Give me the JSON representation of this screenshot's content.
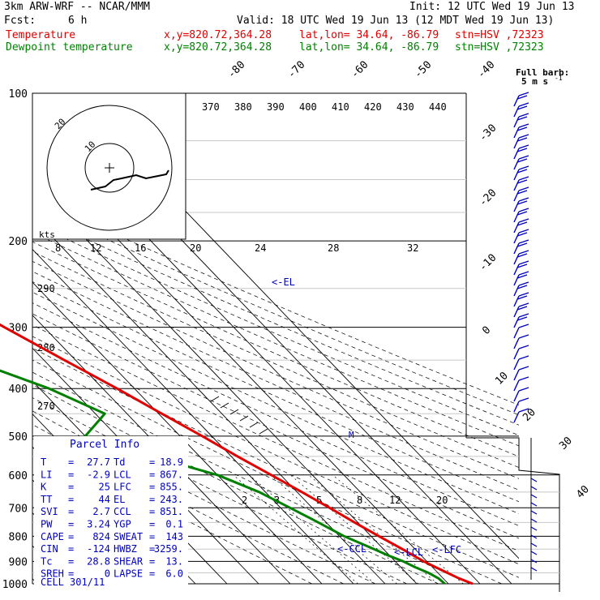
{
  "header": {
    "model": "3km ARW-WRF -- NCAR/MMM",
    "init": "Init: 12 UTC Wed 19 Jun 13",
    "fcst_label": "Fcst:",
    "fcst_value": "6 h",
    "valid": "Valid: 18 UTC Wed 19 Jun 13 (12 MDT Wed 19 Jun 13)",
    "temp_label": "Temperature",
    "dew_label": "Dewpoint temperature",
    "xy": "x,y=820.72,364.28",
    "latlon": "lat,lon= 34.64, -86.79",
    "stn": "stn=HSV ,72323"
  },
  "barb_legend": {
    "title": "Full barb:",
    "value": "5 m s",
    "exp": "-1"
  },
  "parcel_info": {
    "title": "Parcel Info",
    "rows": [
      {
        "k1": "T",
        "v1": "27.7",
        "k2": "Td",
        "v2": "18.9"
      },
      {
        "k1": "LI",
        "v1": "-2.9",
        "k2": "LCL",
        "v2": "867."
      },
      {
        "k1": "K",
        "v1": "25",
        "k2": "LFC",
        "v2": "855."
      },
      {
        "k1": "TT",
        "v1": "44",
        "k2": "EL",
        "v2": "243."
      },
      {
        "k1": "SVI",
        "v1": "2.7",
        "k2": "CCL",
        "v2": "851."
      },
      {
        "k1": "PW",
        "v1": "3.24",
        "k2": "YGP",
        "v2": "0.1"
      },
      {
        "k1": "CAPE",
        "v1": "824",
        "k2": "SWEAT",
        "v2": "143"
      },
      {
        "k1": "CIN",
        "v1": "-124",
        "k2": "HWBZ",
        "v2": "3259."
      },
      {
        "k1": "Tc",
        "v1": "28.8",
        "k2": "SHEAR",
        "v2": "13."
      },
      {
        "k1": "SREH",
        "v1": "0",
        "k2": "LAPSE",
        "v2": "6.0"
      }
    ],
    "cell_label": "CELL",
    "cell_value": "301/11"
  },
  "hodograph": {
    "units": "kts",
    "ring_outer": "20",
    "ring_inner": "10"
  },
  "markers": {
    "el": "<-EL",
    "lcl": "<-LCL",
    "lfc": "<-LFC",
    "ccl": "<-CCL",
    "m": "M"
  },
  "colors": {
    "temperature": "#e00000",
    "dewpoint": "#008000",
    "parcel_text": "#0000c0",
    "barb": "#0000c0"
  },
  "chart_data": {
    "type": "line",
    "pressure_ticks": [
      "100",
      "200",
      "300",
      "400",
      "500",
      "600",
      "700",
      "800",
      "900",
      "1000"
    ],
    "isotherm_labels": [
      "-80",
      "-70",
      "-60",
      "-50",
      "-40",
      "-30",
      "-20",
      "-10",
      "0",
      "10",
      "20",
      "30",
      "40"
    ],
    "theta_e_labels": [
      "370",
      "380",
      "390",
      "400",
      "410",
      "420",
      "430",
      "440"
    ],
    "theta_e_left_labels": [
      "290",
      "280",
      "270"
    ],
    "mixing_ratio_labels": [
      "2",
      "3",
      "5",
      "8",
      "12",
      "20"
    ],
    "speed_labels": [
      "8",
      "12",
      "16",
      "20",
      "24",
      "28",
      "32"
    ],
    "series": [
      {
        "name": "Temperature",
        "pressure": [
          1000,
          975,
          950,
          925,
          900,
          875,
          850,
          800,
          750,
          700,
          650,
          600,
          550,
          500,
          450,
          400,
          350,
          300,
          250,
          200,
          175,
          150,
          125,
          115,
          100
        ],
        "temp": [
          27.7,
          25.0,
          23.0,
          21.0,
          19.0,
          17.5,
          16.0,
          12.5,
          9.0,
          5.5,
          1.5,
          -3.0,
          -8.0,
          -13.0,
          -19.0,
          -25.5,
          -33.5,
          -42.5,
          -52.0,
          -58.5,
          -62.0,
          -66.0,
          -70.5,
          -73.0,
          -77.0
        ]
      },
      {
        "name": "Dewpoint temperature",
        "pressure": [
          1000,
          975,
          950,
          925,
          900,
          875,
          850,
          800,
          750,
          700,
          650,
          600,
          550,
          500,
          450,
          400,
          350,
          320,
          300,
          275,
          250,
          225,
          200,
          175,
          150,
          125,
          100
        ],
        "dewpoint": [
          18.9,
          18.5,
          17.0,
          14.5,
          12.5,
          9.5,
          7.0,
          1.5,
          -2.5,
          -7.0,
          -12.0,
          -20.0,
          -35.0,
          -50.0,
          -37.0,
          -47.0,
          -63.0,
          -62.0,
          -60.0,
          -66.0,
          -73.0,
          -80.0,
          -85.0,
          -86.0,
          -86.5,
          -87.0,
          -88.0
        ]
      }
    ]
  }
}
